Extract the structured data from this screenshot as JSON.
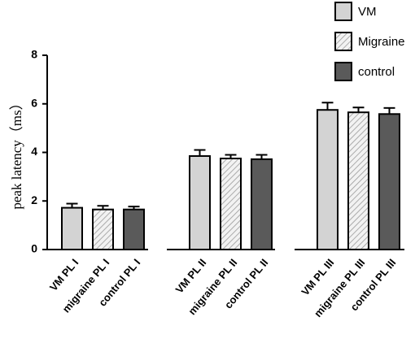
{
  "chart_data": {
    "type": "bar",
    "ylabel": "peak latency（ms）",
    "ylim": [
      0,
      8
    ],
    "yticks": [
      0,
      2,
      4,
      6,
      8
    ],
    "series": [
      {
        "name": "VM",
        "color": "#d3d3d3",
        "hatch": false,
        "categories": [
          "VM PL I",
          "VM PL II",
          "VM PL III"
        ],
        "values": [
          1.72,
          3.85,
          5.75
        ],
        "errors": [
          0.17,
          0.25,
          0.3
        ]
      },
      {
        "name": "Migraine",
        "color": "#ececec",
        "hatch": true,
        "categories": [
          "migraine PL I",
          "migraine PL II",
          "migraine PL III"
        ],
        "values": [
          1.65,
          3.75,
          5.65
        ],
        "errors": [
          0.15,
          0.15,
          0.2
        ]
      },
      {
        "name": "control",
        "color": "#5a5a5a",
        "hatch": false,
        "categories": [
          "control PL I",
          "control PL II",
          "control PL III"
        ],
        "values": [
          1.65,
          3.72,
          5.58
        ],
        "errors": [
          0.12,
          0.18,
          0.25
        ]
      }
    ]
  }
}
